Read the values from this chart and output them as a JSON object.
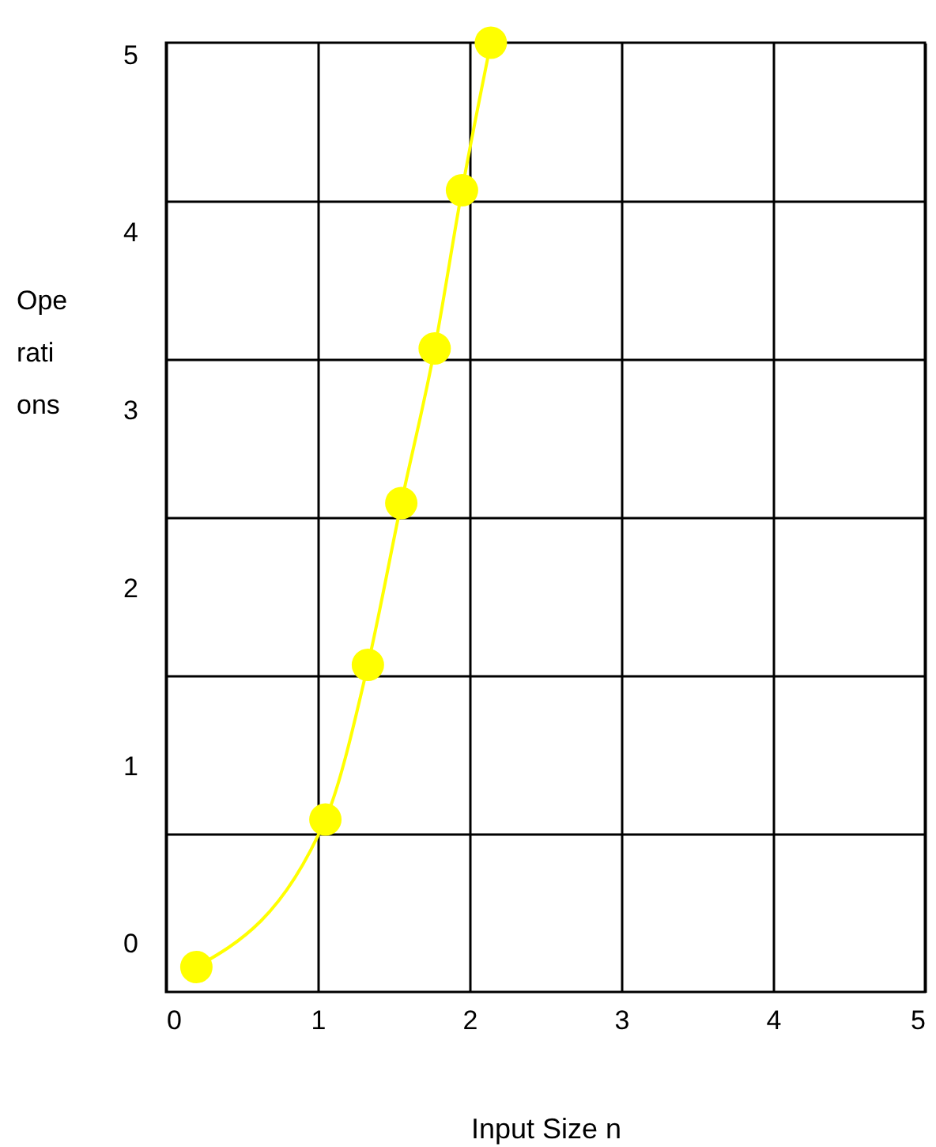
{
  "chart_data": {
    "type": "line",
    "xlabel": "Input Size n",
    "ylabel": "Operations",
    "x": [
      0.2,
      1.05,
      1.33,
      1.55,
      1.77,
      1.95,
      2.14
    ],
    "series": [
      {
        "color": "#ffff00",
        "values": [
          -0.13,
          0.7,
          1.57,
          2.48,
          3.35,
          4.24,
          5.07
        ]
      }
    ],
    "xlim": [
      0,
      5
    ],
    "xticks": [
      0,
      1,
      2,
      3,
      4,
      5
    ],
    "ylim": [
      -0.27,
      5.07
    ],
    "yticks": [
      0,
      {
        "value": 0.62,
        "label": null
      },
      1,
      {
        "value": 1.51,
        "label": null
      },
      2,
      {
        "value": 2.4,
        "label": null
      },
      3,
      {
        "value": 3.29,
        "label": null
      },
      4,
      {
        "value": 4.18,
        "label": null
      },
      5
    ],
    "grid": true,
    "marker": "circle",
    "line_style": "solid"
  }
}
